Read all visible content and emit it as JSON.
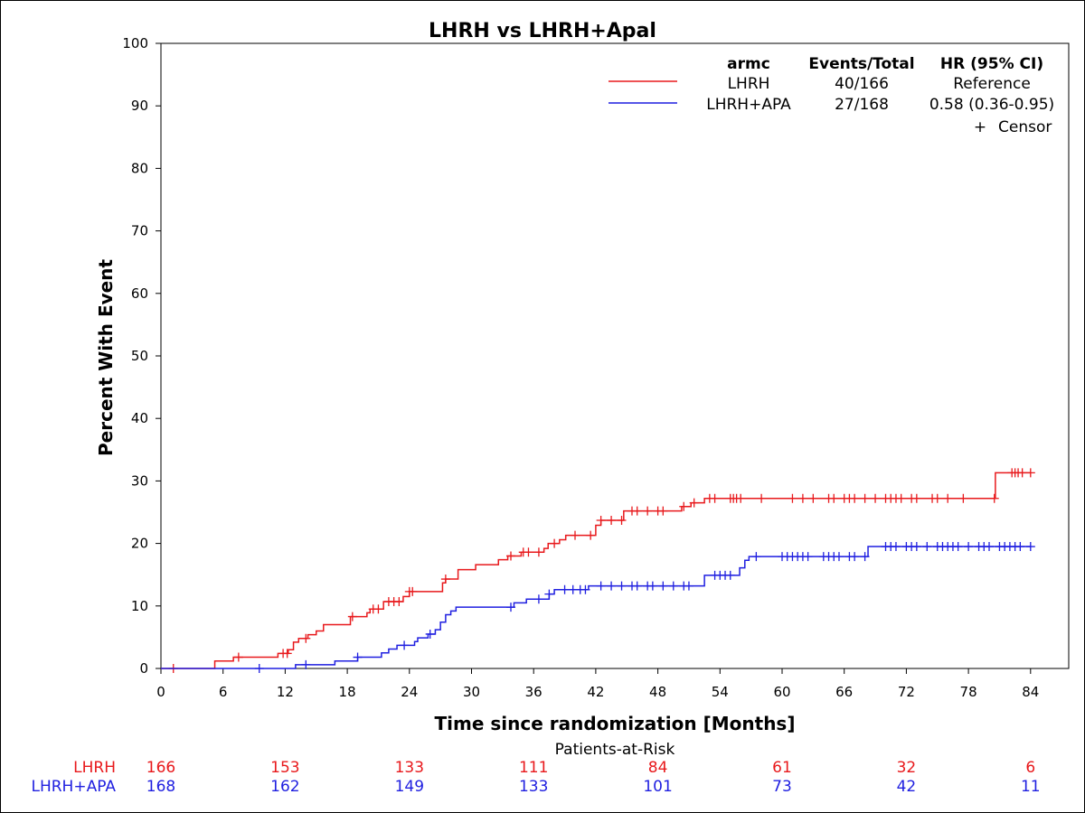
{
  "chart_data": {
    "type": "line",
    "title": "LHRH vs LHRH+Apal",
    "xlabel": "Time since randomization [Months]",
    "ylabel": "Percent With Event",
    "xlim": [
      0,
      86
    ],
    "ylim": [
      0,
      100
    ],
    "x_ticks": [
      0,
      6,
      12,
      18,
      24,
      30,
      36,
      42,
      48,
      54,
      60,
      66,
      72,
      78,
      84
    ],
    "y_ticks": [
      0,
      10,
      20,
      30,
      40,
      50,
      60,
      70,
      80,
      90,
      100
    ],
    "legend": {
      "placement": "top-right",
      "headers": [
        "armc",
        "Events/Total",
        "HR (95% CI)"
      ],
      "rows": [
        {
          "arm": "LHRH",
          "events_total": "40/166",
          "hr": "Reference",
          "color": "#e8191c"
        },
        {
          "arm": "LHRH+APA",
          "events_total": "27/168",
          "hr": "0.58 (0.36-0.95)",
          "color": "#1f1fe0"
        }
      ],
      "censor_symbol": "+",
      "censor_label": "Censor"
    },
    "series": [
      {
        "name": "LHRH",
        "color": "#e8191c",
        "steps": [
          [
            0,
            0
          ],
          [
            5.2,
            1.2
          ],
          [
            7.0,
            1.8
          ],
          [
            11.3,
            2.4
          ],
          [
            12.3,
            3.0
          ],
          [
            12.8,
            4.2
          ],
          [
            13.3,
            4.8
          ],
          [
            14.2,
            5.4
          ],
          [
            15.0,
            6.0
          ],
          [
            15.7,
            7.0
          ],
          [
            18.3,
            8.3
          ],
          [
            19.9,
            8.9
          ],
          [
            20.2,
            9.5
          ],
          [
            21.5,
            10.7
          ],
          [
            23.4,
            11.5
          ],
          [
            24.0,
            12.3
          ],
          [
            27.2,
            13.7
          ],
          [
            27.5,
            14.3
          ],
          [
            28.7,
            15.8
          ],
          [
            30.4,
            16.6
          ],
          [
            32.6,
            17.4
          ],
          [
            33.5,
            18.0
          ],
          [
            34.8,
            18.6
          ],
          [
            37.0,
            19.2
          ],
          [
            37.4,
            20.0
          ],
          [
            38.5,
            20.6
          ],
          [
            39.1,
            21.3
          ],
          [
            42.0,
            22.9
          ],
          [
            42.5,
            23.7
          ],
          [
            44.7,
            25.2
          ],
          [
            50.3,
            25.9
          ],
          [
            51.2,
            26.5
          ],
          [
            52.5,
            27.2
          ],
          [
            80.6,
            31.3
          ],
          [
            84,
            31.3
          ]
        ],
        "censor_times": [
          1.2,
          7.5,
          11.8,
          12.2,
          14.0,
          18.5,
          20.5,
          21.0,
          22.0,
          22.5,
          23.0,
          24.0,
          24.3,
          27.5,
          33.8,
          35.0,
          35.5,
          36.5,
          38.0,
          40.0,
          41.5,
          42.5,
          43.5,
          44.5,
          45.5,
          46.0,
          47.0,
          48.0,
          48.5,
          50.5,
          51.5,
          53.0,
          53.5,
          55.0,
          55.3,
          55.6,
          56.0,
          58.0,
          61.0,
          62.0,
          63.0,
          64.5,
          65.0,
          66.0,
          66.5,
          67.0,
          68.0,
          69.0,
          70.0,
          70.5,
          71.0,
          71.5,
          72.5,
          73.0,
          74.5,
          75.0,
          76.0,
          77.5,
          80.5,
          82.2,
          82.5,
          82.8,
          83.2,
          84.0
        ]
      },
      {
        "name": "LHRH+APA",
        "color": "#1f1fe0",
        "steps": [
          [
            0,
            0
          ],
          [
            13.0,
            0.6
          ],
          [
            16.8,
            1.2
          ],
          [
            19.0,
            1.8
          ],
          [
            21.3,
            2.5
          ],
          [
            22.0,
            3.1
          ],
          [
            22.8,
            3.7
          ],
          [
            24.5,
            4.3
          ],
          [
            24.8,
            4.9
          ],
          [
            25.8,
            5.5
          ],
          [
            26.5,
            6.2
          ],
          [
            27.0,
            7.4
          ],
          [
            27.5,
            8.6
          ],
          [
            28.0,
            9.2
          ],
          [
            28.5,
            9.8
          ],
          [
            34.1,
            10.5
          ],
          [
            35.3,
            11.1
          ],
          [
            37.5,
            11.9
          ],
          [
            38.0,
            12.6
          ],
          [
            41.3,
            13.2
          ],
          [
            42.0,
            13.2
          ],
          [
            52.5,
            14.9
          ],
          [
            55.9,
            16.1
          ],
          [
            56.4,
            17.3
          ],
          [
            56.8,
            17.9
          ],
          [
            68.3,
            19.5
          ],
          [
            84,
            19.5
          ]
        ],
        "censor_times": [
          9.5,
          14.0,
          19.0,
          23.5,
          26.0,
          33.8,
          36.5,
          37.5,
          39.0,
          39.8,
          40.5,
          41.0,
          42.5,
          43.5,
          44.5,
          45.5,
          46.0,
          47.0,
          47.5,
          48.5,
          49.5,
          50.5,
          51.0,
          53.5,
          54.0,
          54.5,
          55.0,
          57.5,
          60.0,
          60.5,
          61.0,
          61.5,
          62.0,
          62.5,
          64.0,
          64.5,
          65.0,
          65.5,
          66.5,
          67.0,
          68.0,
          70.0,
          70.5,
          71.0,
          72.0,
          72.5,
          73.0,
          74.0,
          75.0,
          75.5,
          76.0,
          76.5,
          77.0,
          78.0,
          79.0,
          79.5,
          80.0,
          81.0,
          81.5,
          82.0,
          82.5,
          83.0,
          84.0
        ]
      }
    ],
    "patients_at_risk": {
      "title": "Patients-at-Risk",
      "times": [
        0,
        12,
        24,
        36,
        48,
        60,
        72,
        84
      ],
      "rows": [
        {
          "name": "LHRH",
          "color": "#e8191c",
          "values": [
            "166",
            "153",
            "133",
            "111",
            "84",
            "61",
            "32",
            "6"
          ]
        },
        {
          "name": "LHRH+APA",
          "color": "#1f1fe0",
          "values": [
            "168",
            "162",
            "149",
            "133",
            "101",
            "73",
            "42",
            "11"
          ]
        }
      ]
    }
  }
}
